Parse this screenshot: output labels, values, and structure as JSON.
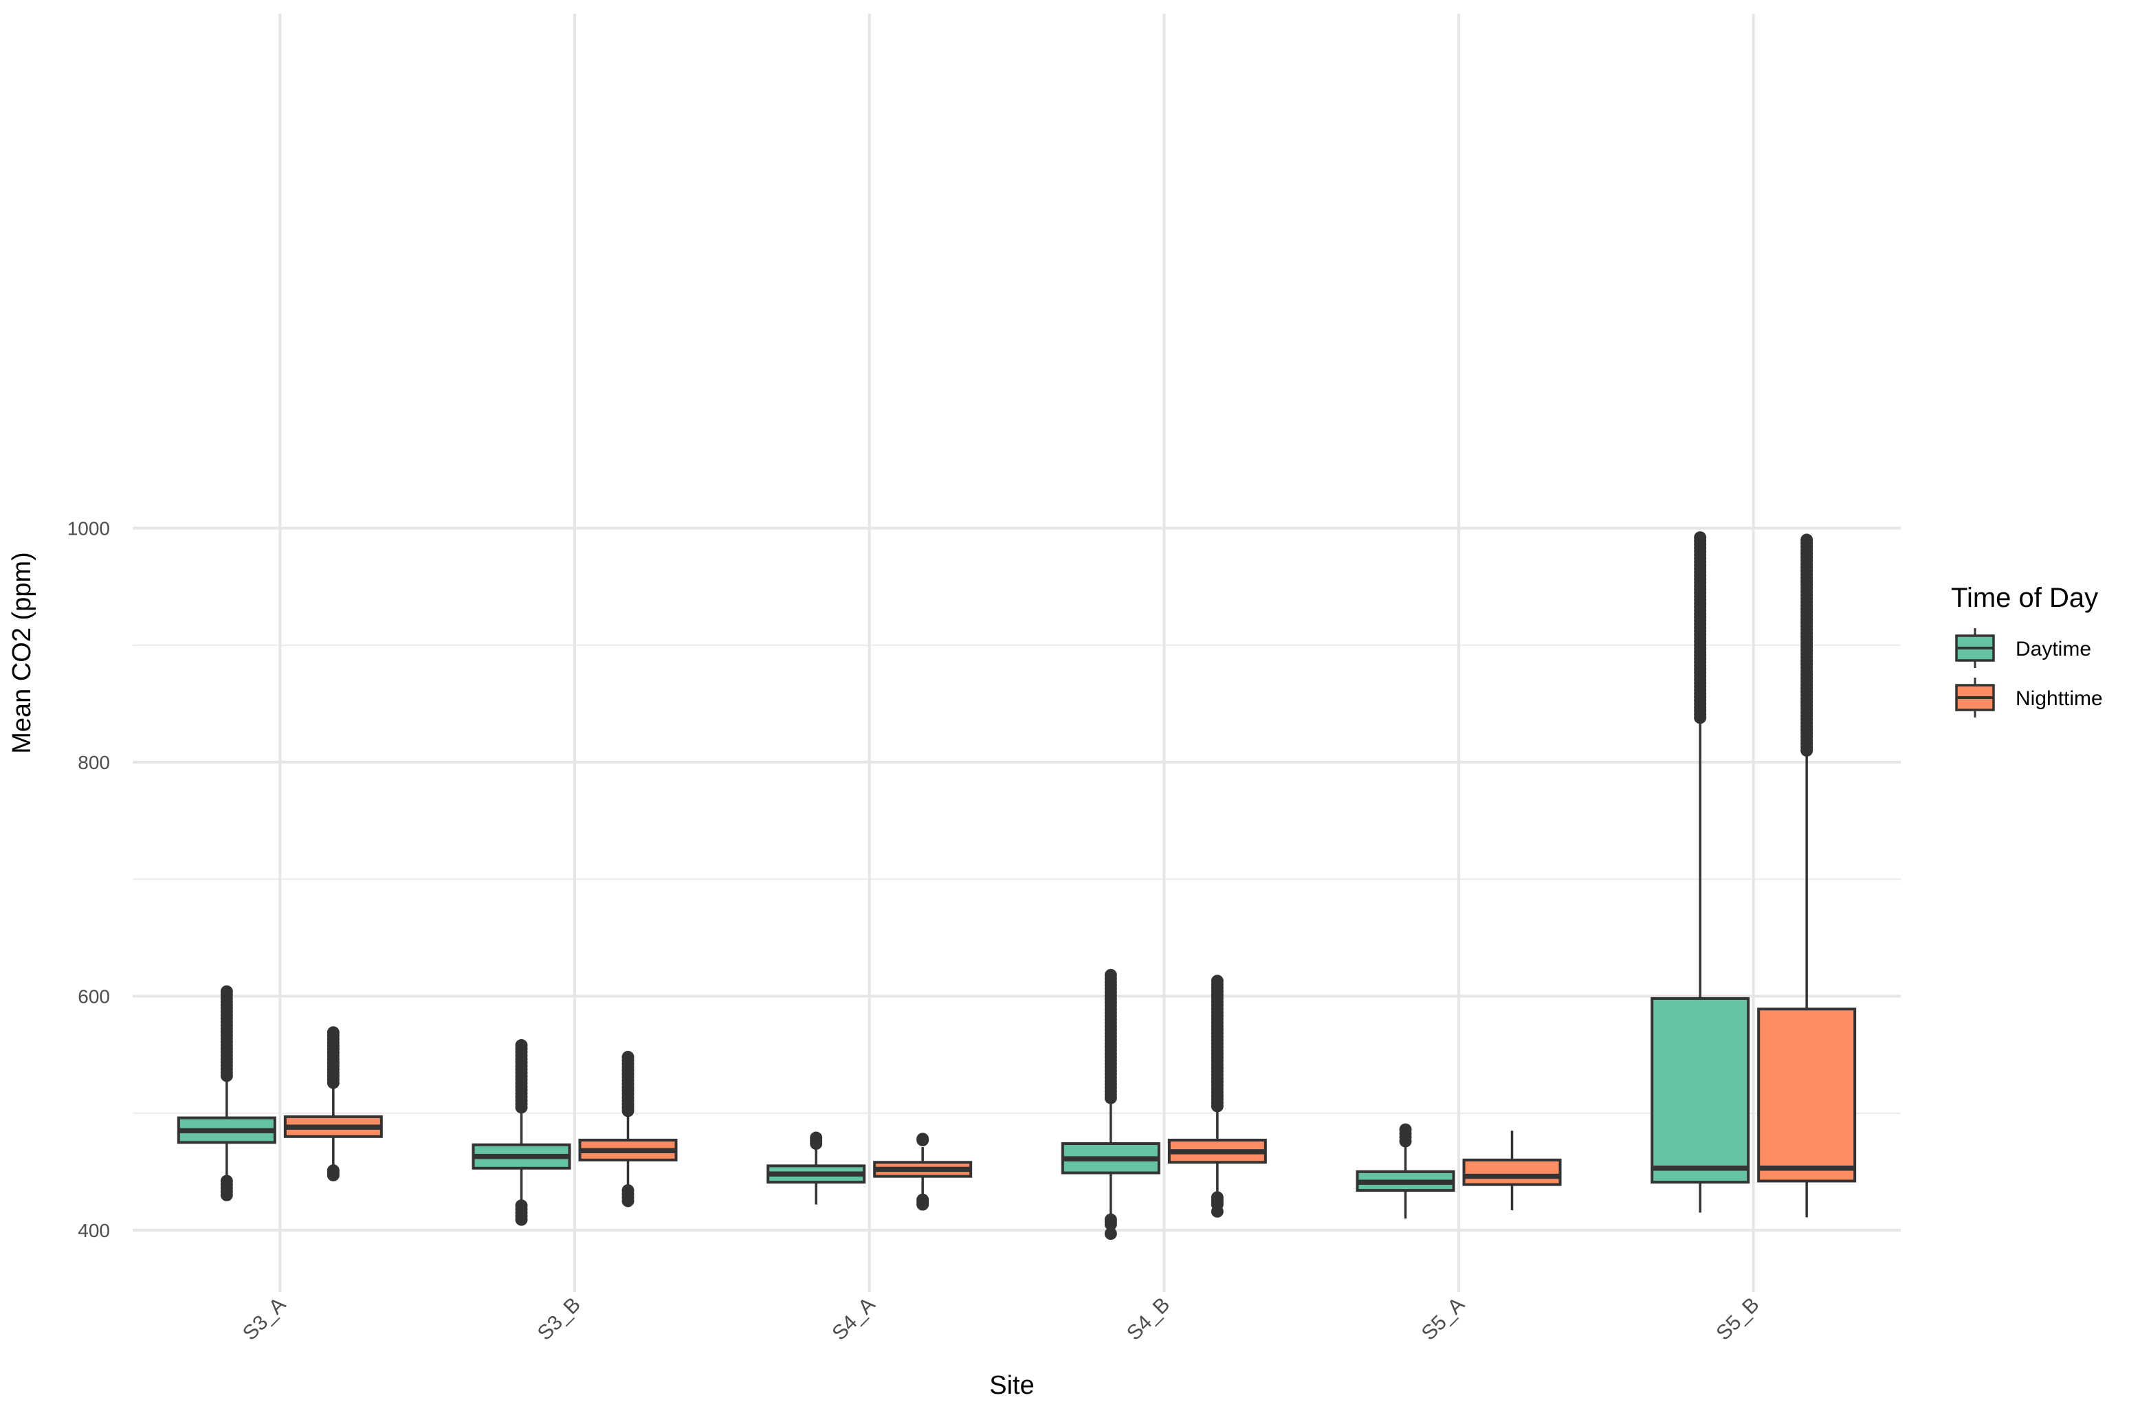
{
  "chart_data": {
    "type": "boxplot",
    "xlabel": "Site",
    "ylabel": "Mean CO2 (ppm)",
    "ylim": [
      365,
      1022
    ],
    "y_ticks": [
      400,
      600,
      800,
      1000
    ],
    "y_minor_ticks": [
      500,
      700,
      900
    ],
    "grid": true,
    "categories": [
      "S3_A",
      "S3_B",
      "S4_A",
      "S4_B",
      "S5_A",
      "S5_B"
    ],
    "legend": {
      "title": "Time of Day",
      "placement": "right",
      "entries": [
        {
          "name": "Daytime",
          "color": "#66C2A5"
        },
        {
          "name": "Nighttime",
          "color": "#FC8D62"
        }
      ]
    },
    "series": [
      {
        "name": "Daytime",
        "color": "#66C2A5",
        "boxes": [
          {
            "category": "S3_A",
            "q1": 475,
            "median": 485,
            "q3": 496,
            "whisker_low": 444,
            "whisker_high": 530,
            "outliers_high_range": [
              532,
              604
            ],
            "outliers_low": [
              430,
              433,
              436,
              439,
              442
            ]
          },
          {
            "category": "S3_B",
            "q1": 453,
            "median": 463,
            "q3": 473,
            "whisker_low": 423,
            "whisker_high": 502,
            "outliers_high_range": [
              505,
              558
            ],
            "outliers_low": [
              409,
              412,
              415,
              418,
              421
            ]
          },
          {
            "category": "S4_A",
            "q1": 441,
            "median": 448,
            "q3": 455,
            "whisker_low": 422,
            "whisker_high": 472,
            "outliers_high_range": [
              474,
              479
            ],
            "outliers_low": []
          },
          {
            "category": "S4_B",
            "q1": 449,
            "median": 461,
            "q3": 474,
            "whisker_low": 413,
            "whisker_high": 511,
            "outliers_high_range": [
              513,
              618
            ],
            "outliers_low": [
              397,
              405,
              407,
              409
            ]
          },
          {
            "category": "S5_A",
            "q1": 434,
            "median": 441,
            "q3": 450,
            "whisker_low": 410,
            "whisker_high": 474,
            "outliers_high_range": [
              476,
              486
            ],
            "outliers_low": []
          },
          {
            "category": "S5_B",
            "q1": 441,
            "median": 453,
            "q3": 598,
            "whisker_low": 415,
            "whisker_high": 835,
            "outliers_high_range": [
              838,
              992
            ],
            "outliers_low": []
          }
        ]
      },
      {
        "name": "Nighttime",
        "color": "#FC8D62",
        "boxes": [
          {
            "category": "S3_A",
            "q1": 480,
            "median": 488,
            "q3": 497,
            "whisker_low": 455,
            "whisker_high": 524,
            "outliers_high_range": [
              526,
              569
            ],
            "outliers_low": [
              447,
              449,
              451
            ]
          },
          {
            "category": "S3_B",
            "q1": 460,
            "median": 468,
            "q3": 477,
            "whisker_low": 437,
            "whisker_high": 500,
            "outliers_high_range": [
              502,
              548
            ],
            "outliers_low": [
              425,
              428,
              431,
              434
            ]
          },
          {
            "category": "S4_A",
            "q1": 446,
            "median": 452,
            "q3": 458,
            "whisker_low": 430,
            "whisker_high": 471,
            "outliers_high_range": [
              477,
              478
            ],
            "outliers_low": [
              422,
              424,
              426
            ]
          },
          {
            "category": "S4_B",
            "q1": 458,
            "median": 467,
            "q3": 477,
            "whisker_low": 430,
            "whisker_high": 504,
            "outliers_high_range": [
              506,
              613
            ],
            "outliers_low": [
              416,
              422,
              424,
              426,
              428
            ]
          },
          {
            "category": "S5_A",
            "q1": 439,
            "median": 446,
            "q3": 460,
            "whisker_low": 417,
            "whisker_high": 485,
            "outliers_high_range": [],
            "outliers_low": []
          },
          {
            "category": "S5_B",
            "q1": 442,
            "median": 453,
            "q3": 589,
            "whisker_low": 411,
            "whisker_high": 808,
            "outliers_high_range": [
              810,
              990
            ],
            "outliers_low": []
          }
        ]
      }
    ]
  }
}
